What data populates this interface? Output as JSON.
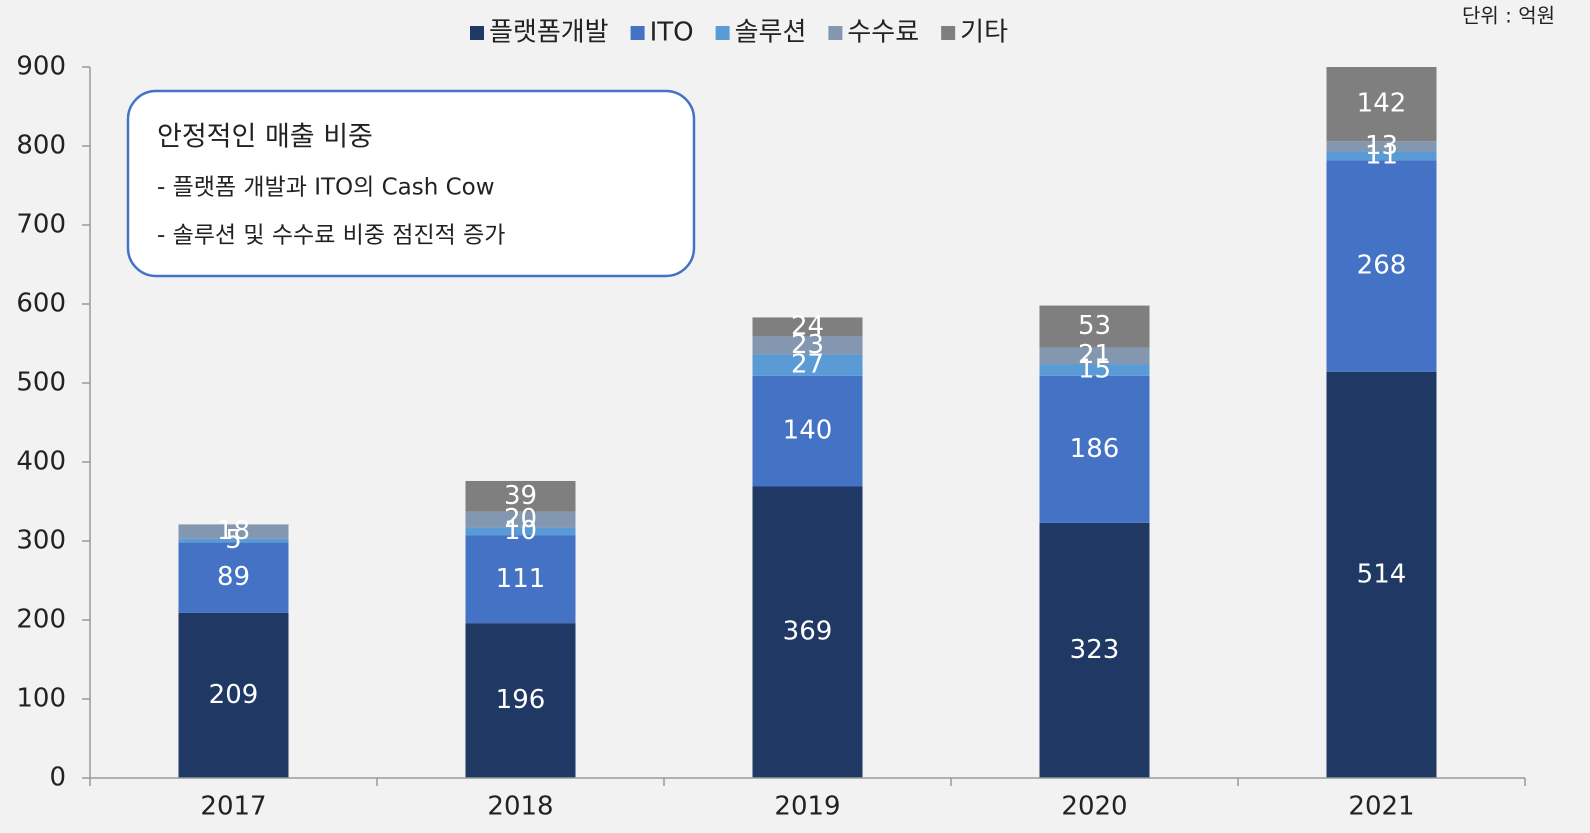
{
  "chart_data": {
    "type": "stacked_bar",
    "unit_note": "단위 : 억원",
    "annotation": {
      "title": "안정적인 매출 비중",
      "lines": [
        "- 플랫폼 개발과 ITO의 Cash Cow",
        "- 솔루션 및 수수료 비중 점진적 증가"
      ]
    },
    "categories": [
      "2017",
      "2018",
      "2019",
      "2020",
      "2021"
    ],
    "series": [
      {
        "name": "플랫폼개발",
        "color": "#1f3864",
        "values": [
          209,
          196,
          369,
          323,
          514
        ]
      },
      {
        "name": "ITO",
        "color": "#4472c4",
        "values": [
          89,
          111,
          140,
          186,
          268
        ]
      },
      {
        "name": "솔루션",
        "color": "#5b9bd5",
        "values": [
          5,
          10,
          27,
          15,
          11
        ]
      },
      {
        "name": "수수료",
        "color": "#8497b0",
        "values": [
          18,
          20,
          23,
          21,
          13
        ]
      },
      {
        "name": "기타",
        "color": "#7f7f7f",
        "values": [
          null,
          39,
          24,
          53,
          142
        ]
      }
    ],
    "ylim": [
      0,
      900
    ],
    "yticks": [
      0,
      100,
      200,
      300,
      400,
      500,
      600,
      700,
      800,
      900
    ],
    "legend": "top"
  }
}
